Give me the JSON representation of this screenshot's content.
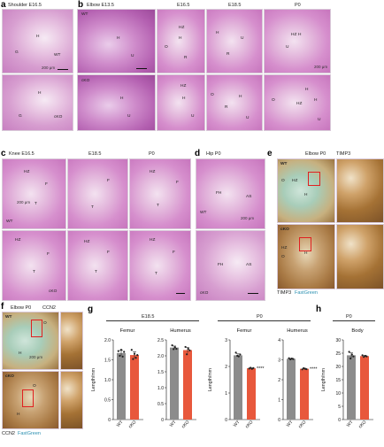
{
  "colors": {
    "wt_bar": "#8c8c8c",
    "cko_bar": "#e8583c",
    "fastgreen": "#2a8fb0",
    "panel_label": "#000000"
  },
  "panels": {
    "a": {
      "letter": "a",
      "title": "Shoulder E16.5",
      "wt": "WT",
      "cko": "cKO",
      "scale": "200 μm",
      "labels_wt": [
        "H",
        "G"
      ],
      "labels_cko": [
        "H",
        "G"
      ]
    },
    "b": {
      "letter": "b",
      "title_first": "Elbow E13.5",
      "stages": [
        "E16.5",
        "E18.5",
        "P0"
      ],
      "wt": "WT",
      "cko": "cKO",
      "scale": "200 μm",
      "labels": [
        "H",
        "U",
        "HZ",
        "H",
        "O",
        "R",
        "H",
        "U",
        "R",
        "HZ",
        "H",
        "U",
        "H",
        "U",
        "HZ",
        "H",
        "U",
        "O",
        "H",
        "R",
        "U",
        "H",
        "O",
        "H",
        "HZ",
        "U"
      ]
    },
    "c": {
      "letter": "c",
      "title_first": "Knee E16.5",
      "stages": [
        "E18.5",
        "P0"
      ],
      "wt": "WT",
      "cko": "cKO",
      "scale": "200 μm",
      "labels": [
        "HZ",
        "F",
        "T",
        "F",
        "T",
        "HZ",
        "F",
        "T",
        "HZ",
        "F",
        "T",
        "HZ",
        "F",
        "T",
        "HZ",
        "F",
        "T"
      ]
    },
    "d": {
      "letter": "d",
      "title": "Hip P0",
      "wt": "WT",
      "cko": "cKO",
      "scale": "200 μm",
      "labels": [
        "FH",
        "AS",
        "FH",
        "AS"
      ]
    },
    "e": {
      "letter": "e",
      "title": "Elbow P0",
      "stain": "TIMP3",
      "wt": "WT",
      "cko": "cKO",
      "labels": [
        "O",
        "HZ",
        "H",
        "HZ",
        "O",
        "H"
      ],
      "footer_stain": "TIMP3",
      "footer_counter": "FastGreen"
    },
    "f": {
      "letter": "f",
      "title": "Elbow P0",
      "stain": "CCN2",
      "wt": "WT",
      "cko": "cKO",
      "scale": "200 μm",
      "labels": [
        "O",
        "H",
        "O",
        "H"
      ],
      "footer_stain": "CCN2",
      "footer_counter": "FastGreen"
    },
    "g": {
      "letter": "g",
      "group1": "E18.5",
      "group2": "P0"
    },
    "h": {
      "letter": "h",
      "group": "P0"
    }
  },
  "chart_data": [
    {
      "type": "bar",
      "title": "Femur",
      "group": "E18.5",
      "ylabel": "Length/mm",
      "categories": [
        "WT",
        "cKO"
      ],
      "values": [
        1.67,
        1.62
      ],
      "ylim": [
        0,
        2.0
      ],
      "yticks": [
        "0",
        "0.5",
        "1.0",
        "1.5",
        "2.0"
      ],
      "tick_vals": [
        0,
        0.5,
        1.0,
        1.5,
        2.0
      ],
      "points": [
        [
          1.72,
          1.6,
          1.75,
          1.58,
          1.7
        ],
        [
          1.75,
          1.52,
          1.65,
          1.55,
          1.62
        ]
      ],
      "significance": ""
    },
    {
      "type": "bar",
      "title": "Humerus",
      "group": "E18.5",
      "ylabel": "",
      "categories": [
        "WT",
        "cKO"
      ],
      "values": [
        2.26,
        2.18
      ],
      "ylim": [
        0,
        2.5
      ],
      "yticks": [
        "0",
        "0.5",
        "1.0",
        "1.5",
        "2.0",
        "2.5"
      ],
      "tick_vals": [
        0,
        0.5,
        1.0,
        1.5,
        2.0,
        2.5
      ],
      "points": [
        [
          2.33,
          2.21,
          2.27,
          2.22
        ],
        [
          2.28,
          2.05,
          2.22,
          2.17
        ]
      ],
      "significance": ""
    },
    {
      "type": "bar",
      "title": "Femur",
      "group": "P0",
      "ylabel": "Length/mm",
      "categories": [
        "WT",
        "cKO"
      ],
      "values": [
        2.42,
        1.93
      ],
      "ylim": [
        0,
        3
      ],
      "yticks": [
        "0",
        "1",
        "2",
        "3"
      ],
      "tick_vals": [
        0,
        1,
        2,
        3
      ],
      "points": [
        [
          2.52,
          2.4,
          2.38,
          2.45
        ],
        [
          1.92,
          1.95,
          1.91,
          1.94
        ]
      ],
      "significance": "****"
    },
    {
      "type": "bar",
      "title": "Humerus",
      "group": "P0",
      "ylabel": "",
      "categories": [
        "WT",
        "cKO"
      ],
      "values": [
        3.05,
        2.55
      ],
      "ylim": [
        0,
        4
      ],
      "yticks": [
        "0",
        "1",
        "2",
        "3",
        "4"
      ],
      "tick_vals": [
        0,
        1,
        2,
        3,
        4
      ],
      "points": [
        [
          3.08,
          3.02,
          3.06,
          3.04
        ],
        [
          2.52,
          2.58,
          2.55,
          2.53
        ]
      ],
      "significance": "****"
    },
    {
      "type": "bar",
      "title": "Body",
      "group": "P0",
      "ylabel": "Length/mm",
      "categories": [
        "WT",
        "cKO"
      ],
      "values": [
        24.2,
        23.9
      ],
      "ylim": [
        0,
        30
      ],
      "yticks": [
        "0",
        "5",
        "10",
        "15",
        "20",
        "25",
        "30"
      ],
      "tick_vals": [
        0,
        5,
        10,
        15,
        20,
        25,
        30
      ],
      "points": [
        [
          25.5,
          23.0,
          24.5,
          23.8
        ],
        [
          24.2,
          23.6,
          24.0,
          23.8
        ]
      ],
      "significance": ""
    }
  ]
}
